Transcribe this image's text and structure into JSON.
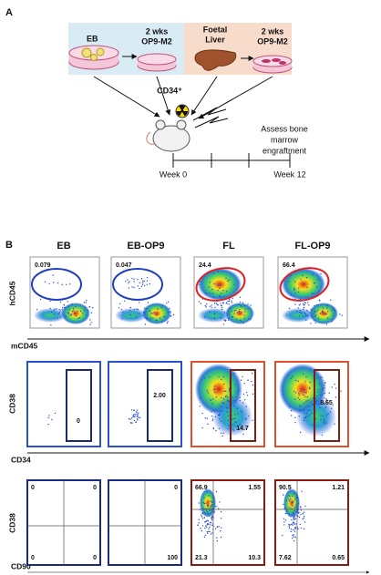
{
  "panel_a": {
    "label": "A",
    "eb": "EB",
    "eb_culture": [
      "2 wks",
      "OP9-M2"
    ],
    "foetal_liver": [
      "Foetal",
      "Liver"
    ],
    "fl_culture": [
      "2 wks",
      "OP9-M2"
    ],
    "sorted_cells": "CD34⁺",
    "readout": [
      "Assess bone",
      "marrow",
      "engraftment"
    ],
    "timeline": [
      "Week 0",
      "Week 12"
    ]
  },
  "panel_b": {
    "label": "B",
    "columns": [
      "EB",
      "EB-OP9",
      "FL",
      "FL-OP9"
    ],
    "row1": {
      "y_axis": "hCD45",
      "x_axis": "mCD45",
      "gates": [
        "0.079",
        "0.047",
        "24.4",
        "66.4"
      ]
    },
    "row2": {
      "y_axis": "CD38",
      "x_axis": "CD34",
      "gates": [
        "0",
        "2.00",
        "14.7",
        "8.65"
      ]
    },
    "row3": {
      "y_axis": "CD38",
      "x_axis": "CD90",
      "quadrants": [
        {
          "top_left": "0",
          "top_right": "0",
          "bottom_left": "0",
          "bottom_right": "0"
        },
        {
          "top_right": "0",
          "bottom_right": "100"
        },
        {
          "top_left": "66.9",
          "top_right": "1.55",
          "bottom_left": "21.3",
          "bottom_right": "10.3"
        },
        {
          "top_left": "90.5",
          "top_right": "1.21",
          "bottom_left": "7.62",
          "bottom_right": "0.65"
        }
      ]
    }
  }
}
